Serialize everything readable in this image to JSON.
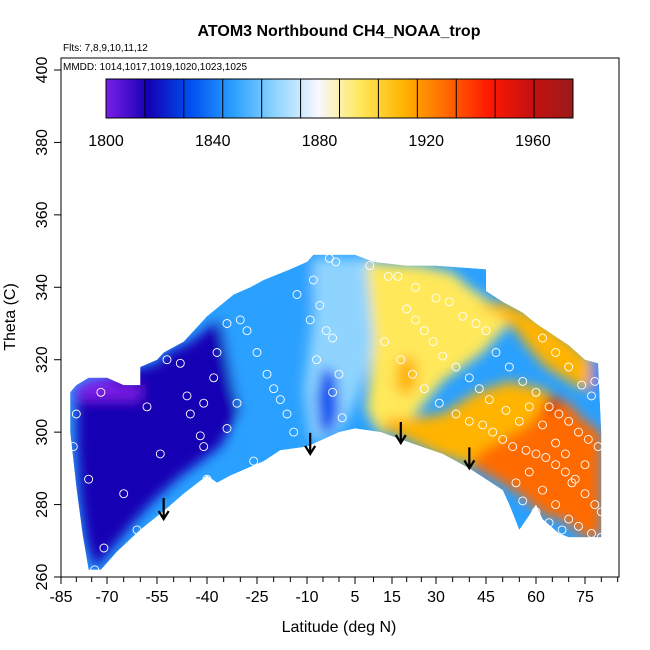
{
  "chart_data": {
    "type": "heatmap",
    "title": "ATOM3 Northbound CH4_NOAA_trop",
    "subtitle_flights": "Flts: 7,8,9,10,11,12",
    "subtitle_dates": "MMDD: 1014,1017,1019,1020,1023,1025",
    "xlabel": "Latitude (deg N)",
    "ylabel": "Theta (C)",
    "xlim": [
      -85,
      85
    ],
    "ylim": [
      260,
      400
    ],
    "x_ticks": [
      -85,
      -70,
      -55,
      -40,
      -25,
      -10,
      5,
      15,
      30,
      45,
      60,
      75
    ],
    "y_ticks": [
      260,
      280,
      300,
      320,
      340,
      360,
      380,
      400
    ],
    "colorbar": {
      "min": 1800,
      "max": 1975,
      "ticks": [
        1800,
        1840,
        1880,
        1920,
        1960
      ],
      "colors": [
        "#7a1fe6",
        "#1400b4",
        "#0050f0",
        "#2aa0ff",
        "#8fd4ff",
        "#f8f8ff",
        "#ffe85a",
        "#ffb400",
        "#ff6a00",
        "#ff1a00",
        "#c81010",
        "#9a1a1a"
      ]
    },
    "arrows": [
      {
        "lat": -53,
        "theta": 276
      },
      {
        "lat": -9,
        "theta": 294
      },
      {
        "lat": 18,
        "theta": 297
      },
      {
        "lat": 40,
        "theta": 290
      }
    ],
    "field_regions": [
      {
        "name": "southern-deep-blue",
        "value": 1822,
        "poly": [
          [
            -80,
            311
          ],
          [
            -76,
            313
          ],
          [
            -72,
            315
          ],
          [
            -60,
            318
          ],
          [
            -55,
            319
          ],
          [
            -52,
            322
          ],
          [
            -45,
            325
          ],
          [
            -35,
            332
          ],
          [
            -26,
            335
          ],
          [
            -25,
            332
          ],
          [
            -28,
            322
          ],
          [
            -29,
            308
          ],
          [
            -36,
            296
          ],
          [
            -49,
            287
          ],
          [
            -56,
            281
          ],
          [
            -62,
            275
          ],
          [
            -70,
            266
          ],
          [
            -74,
            262
          ],
          [
            -77,
            270
          ],
          [
            -79,
            282
          ],
          [
            -80,
            297
          ]
        ]
      },
      {
        "name": "southern-violet-fringe",
        "value": 1805,
        "poly": [
          [
            -82,
            311
          ],
          [
            -79,
            313
          ],
          [
            -75,
            315
          ],
          [
            -70,
            315
          ],
          [
            -65,
            313
          ],
          [
            -60,
            313
          ],
          [
            -60,
            309
          ],
          [
            -66,
            309
          ],
          [
            -72,
            309
          ],
          [
            -79,
            309
          ]
        ]
      },
      {
        "name": "midlat-blue",
        "value": 1845,
        "poly": [
          [
            -36,
            332
          ],
          [
            -24,
            341
          ],
          [
            -12,
            347
          ],
          [
            -4,
            349
          ],
          [
            -10,
            335
          ],
          [
            -15,
            320
          ],
          [
            -18,
            306
          ],
          [
            -20,
            296
          ],
          [
            -24,
            291
          ],
          [
            -28,
            300
          ],
          [
            -32,
            312
          ]
        ]
      },
      {
        "name": "tropical-lightblue",
        "value": 1868,
        "poly": [
          [
            -8,
            348
          ],
          [
            0,
            348
          ],
          [
            8,
            348
          ],
          [
            14,
            346
          ],
          [
            12,
            330
          ],
          [
            8,
            316
          ],
          [
            4,
            306
          ],
          [
            0,
            300
          ],
          [
            -4,
            298
          ],
          [
            -9,
            298
          ],
          [
            -11,
            312
          ],
          [
            -8,
            332
          ]
        ]
      },
      {
        "name": "tropical-pale",
        "value": 1888,
        "poly": [
          [
            8,
            347
          ],
          [
            25,
            346
          ],
          [
            35,
            344
          ],
          [
            40,
            340
          ],
          [
            48,
            335
          ],
          [
            52,
            330
          ],
          [
            44,
            322
          ],
          [
            32,
            314
          ],
          [
            22,
            304
          ],
          [
            12,
            299
          ],
          [
            8,
            306
          ],
          [
            10,
            326
          ]
        ]
      },
      {
        "name": "southern-tropic-blue-core",
        "value": 1830,
        "poly": [
          [
            -5,
            318
          ],
          [
            -1,
            316
          ],
          [
            0,
            306
          ],
          [
            -2,
            300
          ],
          [
            -6,
            300
          ],
          [
            -7,
            310
          ]
        ]
      },
      {
        "name": "northern-yellow",
        "value": 1912,
        "poly": [
          [
            12,
            301
          ],
          [
            20,
            298
          ],
          [
            30,
            294
          ],
          [
            40,
            291
          ],
          [
            50,
            290
          ],
          [
            58,
            292
          ],
          [
            65,
            300
          ],
          [
            68,
            308
          ],
          [
            62,
            312
          ],
          [
            52,
            314
          ],
          [
            42,
            311
          ],
          [
            32,
            305
          ],
          [
            22,
            304
          ],
          [
            14,
            304
          ]
        ]
      },
      {
        "name": "northern-orange",
        "value": 1930,
        "poly": [
          [
            40,
            291
          ],
          [
            48,
            287
          ],
          [
            55,
            283
          ],
          [
            60,
            279
          ],
          [
            63,
            277
          ],
          [
            68,
            276
          ],
          [
            75,
            271
          ],
          [
            80,
            271
          ],
          [
            80,
            300
          ],
          [
            75,
            303
          ],
          [
            70,
            308
          ],
          [
            64,
            310
          ],
          [
            58,
            302
          ],
          [
            50,
            298
          ],
          [
            44,
            295
          ]
        ]
      },
      {
        "name": "upper-north-yellow",
        "value": 1905,
        "poly": [
          [
            42,
            335
          ],
          [
            48,
            333
          ],
          [
            54,
            328
          ],
          [
            58,
            323
          ],
          [
            63,
            318
          ],
          [
            72,
            313
          ],
          [
            78,
            311
          ],
          [
            79,
            318
          ],
          [
            72,
            324
          ],
          [
            65,
            329
          ],
          [
            58,
            333
          ],
          [
            50,
            336
          ]
        ]
      },
      {
        "name": "tropical-yellow-blob",
        "value": 1915,
        "poly": [
          [
            17,
            320
          ],
          [
            22,
            321
          ],
          [
            24,
            317
          ],
          [
            23,
            312
          ],
          [
            19,
            310
          ],
          [
            16,
            313
          ]
        ]
      },
      {
        "name": "red-spot",
        "value": 1955,
        "poly": [
          [
            64,
            305
          ],
          [
            66,
            306
          ],
          [
            67,
            309
          ],
          [
            65,
            310
          ],
          [
            63,
            308
          ]
        ]
      },
      {
        "name": "northern-edge-blue",
        "value": 1838,
        "poly": [
          [
            77,
            319
          ],
          [
            79,
            319
          ],
          [
            79,
            311
          ],
          [
            77,
            311
          ]
        ]
      }
    ],
    "hull": [
      [
        -82,
        311
      ],
      [
        -80,
        313
      ],
      [
        -76,
        315
      ],
      [
        -70,
        315
      ],
      [
        -65,
        313
      ],
      [
        -60,
        313
      ],
      [
        -60,
        318
      ],
      [
        -55,
        320
      ],
      [
        -53,
        322
      ],
      [
        -47,
        325
      ],
      [
        -44,
        328
      ],
      [
        -40,
        332
      ],
      [
        -36,
        335
      ],
      [
        -32,
        338
      ],
      [
        -27,
        340
      ],
      [
        -23,
        342
      ],
      [
        -15,
        345
      ],
      [
        -10,
        347
      ],
      [
        -8,
        349
      ],
      [
        5,
        349
      ],
      [
        10,
        347
      ],
      [
        20,
        346
      ],
      [
        30,
        346
      ],
      [
        45,
        345
      ],
      [
        45,
        339
      ],
      [
        50,
        336
      ],
      [
        56,
        333
      ],
      [
        60,
        330
      ],
      [
        65,
        327
      ],
      [
        70,
        324
      ],
      [
        75,
        320
      ],
      [
        79,
        319
      ],
      [
        80,
        300
      ],
      [
        80,
        271
      ],
      [
        75,
        271
      ],
      [
        70,
        271
      ],
      [
        67,
        272
      ],
      [
        62,
        276
      ],
      [
        60,
        280
      ],
      [
        58,
        277
      ],
      [
        55,
        273
      ],
      [
        52,
        280
      ],
      [
        50,
        284
      ],
      [
        45,
        287
      ],
      [
        40,
        290
      ],
      [
        32,
        294
      ],
      [
        25,
        296
      ],
      [
        18,
        298
      ],
      [
        12,
        300
      ],
      [
        5,
        301
      ],
      [
        0,
        300
      ],
      [
        -5,
        298
      ],
      [
        -10,
        296
      ],
      [
        -18,
        295
      ],
      [
        -23,
        292
      ],
      [
        -28,
        290
      ],
      [
        -33,
        288
      ],
      [
        -37,
        286
      ],
      [
        -40,
        288
      ],
      [
        -47,
        283
      ],
      [
        -52,
        279
      ],
      [
        -60,
        273
      ],
      [
        -67,
        267
      ],
      [
        -72,
        262
      ],
      [
        -76,
        262
      ],
      [
        -78,
        272
      ],
      [
        -80,
        285
      ],
      [
        -82,
        300
      ]
    ],
    "sample_points": [
      [
        -72,
        311
      ],
      [
        -80,
        305
      ],
      [
        -81,
        296
      ],
      [
        -76,
        287
      ],
      [
        -65,
        283
      ],
      [
        -61,
        273
      ],
      [
        -71,
        268
      ],
      [
        -74,
        262
      ],
      [
        -58,
        307
      ],
      [
        -54,
        294
      ],
      [
        -52,
        320
      ],
      [
        -48,
        319
      ],
      [
        -46,
        310
      ],
      [
        -45,
        305
      ],
      [
        -42,
        299
      ],
      [
        -41,
        296
      ],
      [
        -41,
        308
      ],
      [
        -38,
        315
      ],
      [
        -37,
        322
      ],
      [
        -34,
        330
      ],
      [
        -30,
        331
      ],
      [
        -28,
        328
      ],
      [
        -25,
        322
      ],
      [
        -22,
        316
      ],
      [
        -20,
        312
      ],
      [
        -18,
        309
      ],
      [
        -16,
        305
      ],
      [
        -14,
        300
      ],
      [
        -31,
        308
      ],
      [
        -26,
        292
      ],
      [
        -34,
        301
      ],
      [
        -40,
        287
      ],
      [
        -31,
        285
      ],
      [
        -3,
        348
      ],
      [
        -1,
        347
      ],
      [
        -8,
        342
      ],
      [
        -13,
        338
      ],
      [
        -6,
        335
      ],
      [
        -9,
        331
      ],
      [
        -4,
        328
      ],
      [
        -2,
        326
      ],
      [
        -7,
        320
      ],
      [
        0,
        316
      ],
      [
        -2,
        311
      ],
      [
        1,
        304
      ],
      [
        -3,
        297
      ],
      [
        2,
        298
      ],
      [
        9,
        346
      ],
      [
        14,
        343
      ],
      [
        17,
        343
      ],
      [
        23,
        340
      ],
      [
        30,
        337
      ],
      [
        34,
        336
      ],
      [
        38,
        332
      ],
      [
        42,
        330
      ],
      [
        45,
        328
      ],
      [
        13,
        325
      ],
      [
        18,
        320
      ],
      [
        22,
        316
      ],
      [
        26,
        312
      ],
      [
        31,
        308
      ],
      [
        36,
        305
      ],
      [
        40,
        303
      ],
      [
        44,
        302
      ],
      [
        47,
        300
      ],
      [
        50,
        298
      ],
      [
        53,
        296
      ],
      [
        57,
        295
      ],
      [
        60,
        294
      ],
      [
        63,
        293
      ],
      [
        66,
        291
      ],
      [
        69,
        289
      ],
      [
        72,
        287
      ],
      [
        75,
        283
      ],
      [
        78,
        280
      ],
      [
        80,
        278
      ],
      [
        48,
        322
      ],
      [
        52,
        318
      ],
      [
        56,
        314
      ],
      [
        60,
        311
      ],
      [
        64,
        307
      ],
      [
        67,
        305
      ],
      [
        70,
        303
      ],
      [
        73,
        300
      ],
      [
        76,
        298
      ],
      [
        58,
        307
      ],
      [
        62,
        302
      ],
      [
        66,
        297
      ],
      [
        69,
        294
      ],
      [
        55,
        303
      ],
      [
        51,
        306
      ],
      [
        46,
        309
      ],
      [
        43,
        312
      ],
      [
        40,
        315
      ],
      [
        36,
        318
      ],
      [
        32,
        321
      ],
      [
        29,
        325
      ],
      [
        26,
        328
      ],
      [
        23,
        331
      ],
      [
        20,
        334
      ],
      [
        54,
        286
      ],
      [
        58,
        289
      ],
      [
        62,
        284
      ],
      [
        66,
        280
      ],
      [
        70,
        276
      ],
      [
        73,
        274
      ],
      [
        77,
        272
      ],
      [
        80,
        271
      ],
      [
        56,
        281
      ],
      [
        60,
        278
      ],
      [
        64,
        275
      ],
      [
        68,
        273
      ],
      [
        71,
        286
      ],
      [
        75,
        291
      ],
      [
        79,
        296
      ],
      [
        77,
        310
      ],
      [
        78,
        314
      ],
      [
        74,
        313
      ],
      [
        70,
        318
      ],
      [
        66,
        322
      ],
      [
        62,
        326
      ]
    ]
  }
}
